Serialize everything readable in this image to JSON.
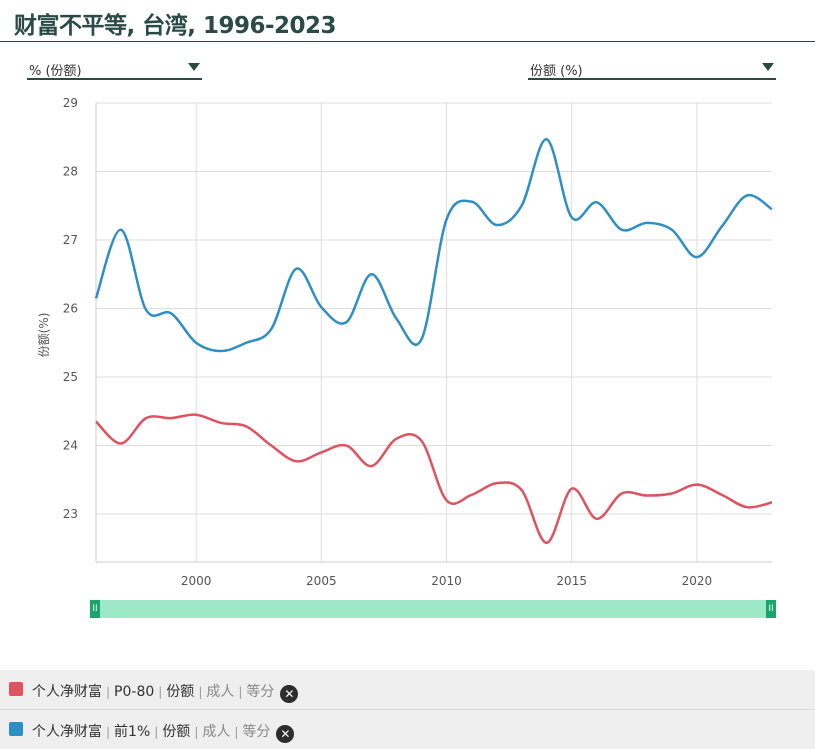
{
  "title": "财富不平等, 台湾, 1996-2023",
  "selectors": {
    "unit": "% (份额)",
    "measure": "份额 (%)"
  },
  "chart_data": {
    "type": "line",
    "ylabel": "份额(%)",
    "xlim": [
      1996,
      2023
    ],
    "ylim": [
      22.3,
      29
    ],
    "yticks": [
      23,
      24,
      25,
      26,
      27,
      28,
      29
    ],
    "xticks": [
      2000,
      2005,
      2010,
      2015,
      2020
    ],
    "grid": true,
    "x": [
      1996,
      1997,
      1998,
      1999,
      2000,
      2001,
      2002,
      2003,
      2004,
      2005,
      2006,
      2007,
      2008,
      2009,
      2010,
      2011,
      2012,
      2013,
      2014,
      2015,
      2016,
      2017,
      2018,
      2019,
      2020,
      2021,
      2022,
      2023
    ],
    "series": [
      {
        "name": "个人净财富 | P0-80 | 份额 | 成人 | 等分",
        "color": "#e05260",
        "values": [
          24.35,
          24.03,
          24.4,
          24.4,
          24.45,
          24.33,
          24.28,
          24.0,
          23.77,
          23.9,
          24.0,
          23.7,
          24.1,
          24.07,
          23.2,
          23.28,
          23.45,
          23.35,
          22.58,
          23.37,
          22.93,
          23.3,
          23.27,
          23.3,
          23.43,
          23.28,
          23.1,
          23.17
        ]
      },
      {
        "name": "个人净财富 | 前1% | 份额 | 成人 | 等分",
        "color": "#2e8fc6",
        "values": [
          26.15,
          27.15,
          25.98,
          25.93,
          25.5,
          25.38,
          25.5,
          25.7,
          26.58,
          26.02,
          25.8,
          26.5,
          25.85,
          25.55,
          27.3,
          27.56,
          27.22,
          27.5,
          28.47,
          27.33,
          27.55,
          27.15,
          27.25,
          27.15,
          26.75,
          27.2,
          27.65,
          27.45
        ]
      }
    ]
  },
  "legend": [
    {
      "indicator": "个人净财富",
      "group": "P0-80",
      "measure": "份额",
      "population": "成人",
      "unit": "等分",
      "color": "#e05260"
    },
    {
      "indicator": "个人净财富",
      "group": "前1%",
      "measure": "份额",
      "population": "成人",
      "unit": "等分",
      "color": "#2e8fc6"
    }
  ],
  "slider": {
    "left_handle": "II",
    "right_handle": "II"
  },
  "remove_icon": "✕"
}
